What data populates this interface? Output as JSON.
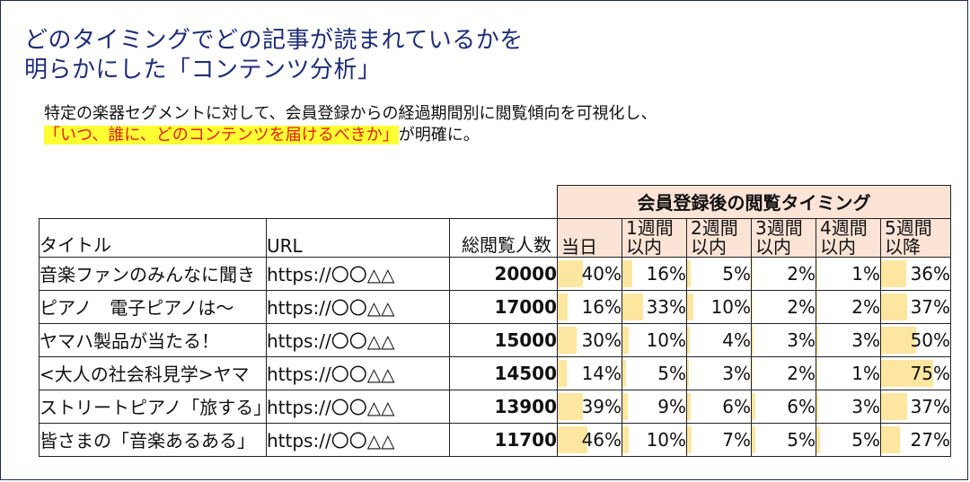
{
  "title": {
    "line1": "どのタイミングでどの記事が読まれているかを",
    "line2": "明らかにした「コンテンツ分析」"
  },
  "subtitle": {
    "line1": "特定の楽器セグメントに対して、会員登録からの経過期間別に閲覧傾向を可視化し、",
    "highlight": "「いつ、誰に、どのコンテンツを届けるべきか」",
    "tail": "が明確に。"
  },
  "table": {
    "group_header": "会員登録後の閲覧タイミング",
    "headers": {
      "title": "タイトル",
      "url": "URL",
      "views": "総閲覧人数",
      "timing": [
        {
          "l1": "",
          "l2": "当日"
        },
        {
          "l1": "1週間",
          "l2": "以内"
        },
        {
          "l1": "2週間",
          "l2": "以内"
        },
        {
          "l1": "3週間",
          "l2": "以内"
        },
        {
          "l1": "4週間",
          "l2": "以内"
        },
        {
          "l1": "5週間",
          "l2": "以降"
        }
      ]
    },
    "rows": [
      {
        "title": "音楽ファンのみんなに聞き",
        "url": "https://〇〇△△",
        "views": "20000",
        "pct": [
          "40%",
          "16%",
          "5%",
          "2%",
          "1%",
          "36%"
        ],
        "fill": [
          0.4,
          0.16,
          0.05,
          0.02,
          0.01,
          0.36
        ]
      },
      {
        "title": "ピアノ　電子ピアノは～",
        "url": "https://〇〇△△",
        "views": "17000",
        "pct": [
          "16%",
          "33%",
          "10%",
          "2%",
          "2%",
          "37%"
        ],
        "fill": [
          0.16,
          0.33,
          0.1,
          0.02,
          0.02,
          0.37
        ]
      },
      {
        "title": "ヤマハ製品が当たる！",
        "url": "https://〇〇△△",
        "views": "15000",
        "pct": [
          "30%",
          "10%",
          "4%",
          "3%",
          "3%",
          "50%"
        ],
        "fill": [
          0.3,
          0.1,
          0.04,
          0.03,
          0.03,
          0.5
        ]
      },
      {
        "title": "<大人の社会科見学>ヤマ",
        "url": "https://〇〇△△",
        "views": "14500",
        "pct": [
          "14%",
          "5%",
          "3%",
          "2%",
          "1%",
          "75%"
        ],
        "fill": [
          0.14,
          0.05,
          0.03,
          0.02,
          0.01,
          0.75
        ]
      },
      {
        "title": "ストリートピアノ「旅する」",
        "url": "https://〇〇△△",
        "views": "13900",
        "pct": [
          "39%",
          "9%",
          "6%",
          "6%",
          "3%",
          "37%"
        ],
        "fill": [
          0.39,
          0.09,
          0.06,
          0.06,
          0.03,
          0.37
        ]
      },
      {
        "title": "皆さまの「音楽あるある」",
        "url": "https://〇〇△△",
        "views": "11700",
        "pct": [
          "46%",
          "10%",
          "7%",
          "5%",
          "5%",
          "27%"
        ],
        "fill": [
          0.46,
          0.1,
          0.07,
          0.05,
          0.05,
          0.27
        ]
      }
    ]
  }
}
